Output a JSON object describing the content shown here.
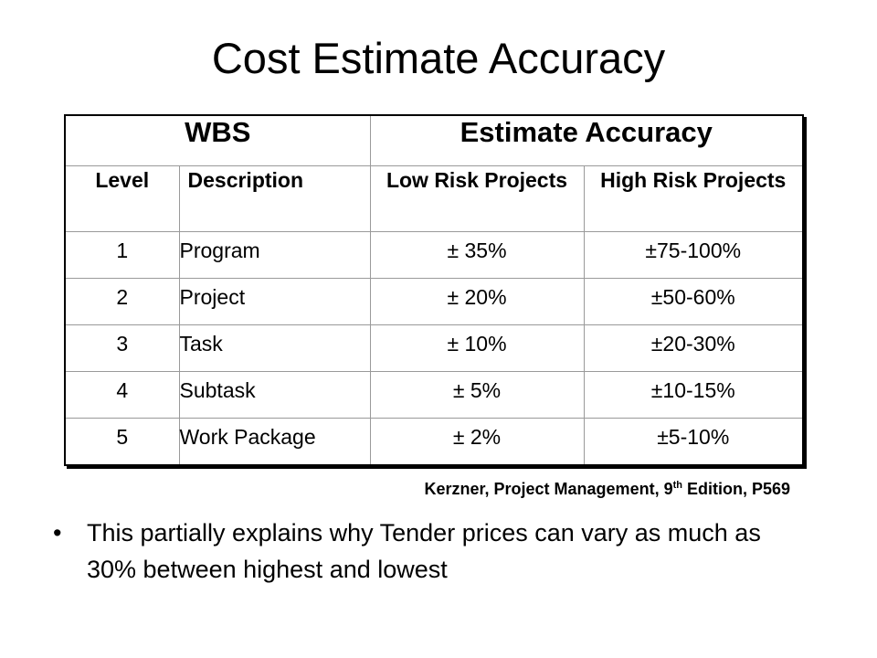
{
  "slide": {
    "title": "Cost Estimate Accuracy"
  },
  "table": {
    "group_headers": [
      "WBS",
      "Estimate Accuracy"
    ],
    "column_headers": {
      "level": "Level",
      "description": "Description",
      "low_risk": "Low Risk Projects",
      "high_risk": "High Risk Projects"
    },
    "rows": [
      {
        "level": "1",
        "description": "Program",
        "low_risk": "± 35%",
        "high_risk": "±75-100%"
      },
      {
        "level": "2",
        "description": "Project",
        "low_risk": "± 20%",
        "high_risk": "±50-60%"
      },
      {
        "level": "3",
        "description": "Task",
        "low_risk": "± 10%",
        "high_risk": "±20-30%"
      },
      {
        "level": "4",
        "description": "Subtask",
        "low_risk": "± 5%",
        "high_risk": "±10-15%"
      },
      {
        "level": "5",
        "description": "Work Package",
        "low_risk": "± 2%",
        "high_risk": "±5-10%"
      }
    ]
  },
  "citation": {
    "before_sup": "Kerzner, Project Management, 9",
    "sup": "th",
    "after_sup": " Edition, P569"
  },
  "bullets": [
    {
      "marker": "•",
      "text": "This partially explains why Tender prices can vary as much as 30% between highest and lowest"
    }
  ]
}
